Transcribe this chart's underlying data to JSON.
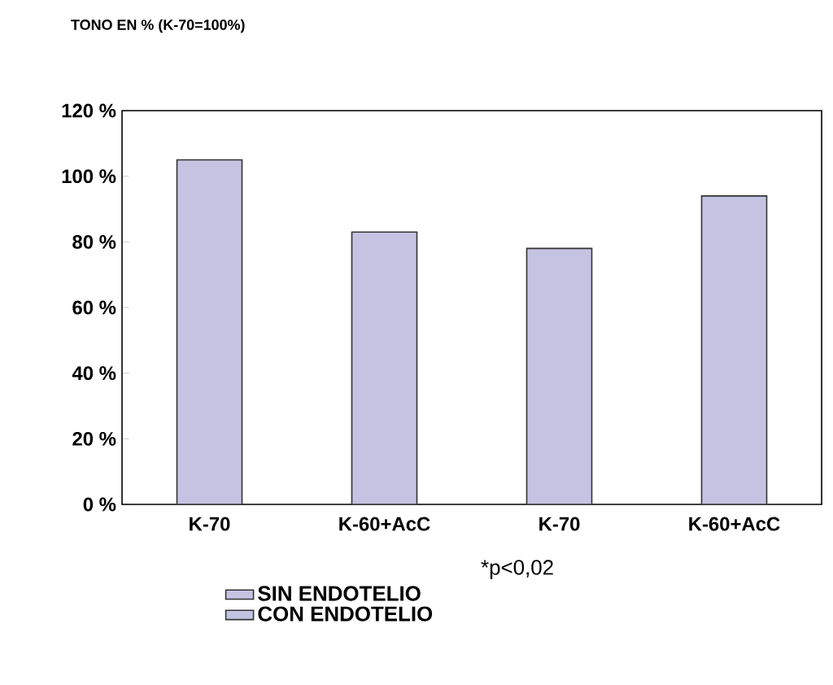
{
  "chart_data": {
    "type": "bar",
    "title": "TONO EN % (K-70=100%)",
    "categories": [
      "K-70",
      "K-60+AcC",
      "K-70",
      "K-60+AcC"
    ],
    "series": [
      {
        "name": "SIN ENDOTELIO",
        "color": "#c5c3e2",
        "values": [
          105,
          83,
          null,
          null
        ]
      },
      {
        "name": "CON ENDOTELIO",
        "color": "#c5c3e2",
        "values": [
          null,
          null,
          78,
          94
        ]
      }
    ],
    "ylim": [
      0,
      120
    ],
    "yticks": [
      {
        "value": 0,
        "label": "0 %"
      },
      {
        "value": 20,
        "label": "20 %"
      },
      {
        "value": 40,
        "label": "40 %"
      },
      {
        "value": 60,
        "label": "60 %"
      },
      {
        "value": 80,
        "label": "80 %"
      },
      {
        "value": 100,
        "label": "100 %"
      },
      {
        "value": 120,
        "label": "120 %"
      }
    ],
    "legend": "bottom",
    "grid": false,
    "annotations": [
      "*p<0,02"
    ]
  }
}
